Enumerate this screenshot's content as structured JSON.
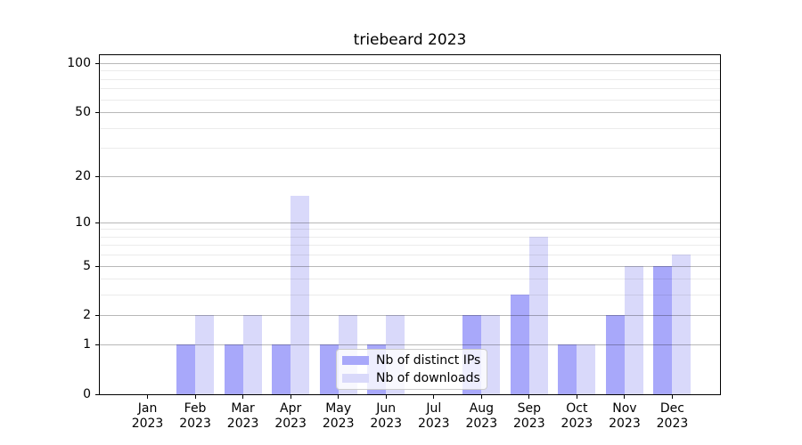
{
  "title": "triebeard 2023",
  "legend": {
    "items": [
      {
        "label": "Nb of distinct IPs",
        "color": "#a8a8fa"
      },
      {
        "label": "Nb of downloads",
        "color": "#d9d9fa"
      }
    ]
  },
  "chart_data": {
    "type": "bar",
    "title": "triebeard 2023",
    "categories": [
      {
        "month": "Jan",
        "year": "2023"
      },
      {
        "month": "Feb",
        "year": "2023"
      },
      {
        "month": "Mar",
        "year": "2023"
      },
      {
        "month": "Apr",
        "year": "2023"
      },
      {
        "month": "May",
        "year": "2023"
      },
      {
        "month": "Jun",
        "year": "2023"
      },
      {
        "month": "Jul",
        "year": "2023"
      },
      {
        "month": "Aug",
        "year": "2023"
      },
      {
        "month": "Sep",
        "year": "2023"
      },
      {
        "month": "Oct",
        "year": "2023"
      },
      {
        "month": "Nov",
        "year": "2023"
      },
      {
        "month": "Dec",
        "year": "2023"
      }
    ],
    "series": [
      {
        "name": "Nb of distinct IPs",
        "color": "#a8a8fa",
        "values": [
          0,
          1,
          1,
          1,
          1,
          1,
          0,
          2,
          3,
          1,
          2,
          5
        ]
      },
      {
        "name": "Nb of downloads",
        "color": "#d9d9fa",
        "values": [
          0,
          2,
          2,
          15,
          2,
          2,
          0,
          2,
          8,
          1,
          5,
          6
        ]
      }
    ],
    "xlabel": "",
    "ylabel": "",
    "yscale": "log1p",
    "ylim": [
      0,
      112
    ],
    "yticks": [
      0,
      1,
      2,
      5,
      10,
      20,
      50,
      100
    ],
    "minor_yticks": [
      3,
      4,
      6,
      7,
      8,
      9,
      30,
      40,
      60,
      70,
      80,
      90
    ],
    "grid": "horizontal",
    "legend_position": "lower-center"
  }
}
